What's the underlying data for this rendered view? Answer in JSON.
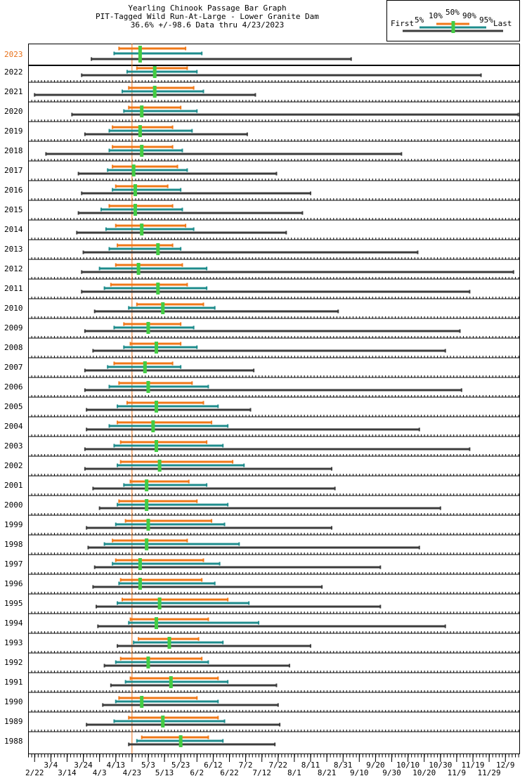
{
  "chart_data": {
    "type": "rangebar",
    "title": [
      "Yearling Chinook Passage Bar Graph",
      "PIT-Tagged Wild Run-At-Large - Lower Granite Dam",
      "36.6% +/-98.6 Data thru 4/23/2023"
    ],
    "categories": [
      "2023",
      "2022",
      "2021",
      "2020",
      "2019",
      "2018",
      "2017",
      "2016",
      "2015",
      "2014",
      "2013",
      "2012",
      "2011",
      "2010",
      "2009",
      "2008",
      "2007",
      "2006",
      "2005",
      "2004",
      "2003",
      "2002",
      "2001",
      "2000",
      "1999",
      "1998",
      "1997",
      "1996",
      "1995",
      "1994",
      "1993",
      "1992",
      "1991",
      "1990",
      "1989",
      "1988"
    ],
    "series": [
      {
        "name": "First",
        "color": "#3c3c3c",
        "values": [
          88,
          82,
          53,
          76,
          84,
          60,
          80,
          82,
          80,
          79,
          83,
          82,
          82,
          90,
          84,
          89,
          84,
          84,
          85,
          85,
          84,
          84,
          89,
          93,
          85,
          86,
          90,
          89,
          91,
          92,
          104,
          96,
          100,
          95,
          85,
          111
        ]
      },
      {
        "name": "5%",
        "color": "#1e8c8c",
        "values": [
          102,
          110,
          107,
          108,
          99,
          99,
          98,
          101,
          94,
          97,
          99,
          93,
          96,
          111,
          102,
          108,
          98,
          99,
          104,
          99,
          102,
          104,
          108,
          104,
          103,
          96,
          101,
          105,
          104,
          111,
          114,
          103,
          109,
          103,
          102,
          116
        ]
      },
      {
        "name": "10%",
        "color": "#f07818",
        "values": [
          105,
          116,
          111,
          111,
          101,
          101,
          101,
          103,
          99,
          103,
          104,
          103,
          100,
          116,
          108,
          112,
          102,
          105,
          110,
          104,
          106,
          106,
          112,
          105,
          109,
          101,
          103,
          106,
          107,
          112,
          117,
          106,
          112,
          105,
          111,
          119
        ]
      },
      {
        "name": "50%",
        "color": "#44cc44",
        "values": [
          118,
          127,
          127,
          119,
          118,
          119,
          114,
          115,
          115,
          119,
          129,
          117,
          129,
          132,
          123,
          128,
          121,
          123,
          128,
          126,
          128,
          130,
          122,
          122,
          123,
          122,
          118,
          118,
          130,
          128,
          136,
          123,
          137,
          119,
          132,
          143
        ]
      },
      {
        "name": "90%",
        "color": "#f07818",
        "values": [
          146,
          147,
          151,
          143,
          138,
          138,
          141,
          135,
          138,
          146,
          138,
          144,
          147,
          157,
          143,
          143,
          138,
          150,
          157,
          162,
          159,
          175,
          148,
          153,
          162,
          147,
          157,
          156,
          172,
          160,
          154,
          156,
          166,
          153,
          166,
          160
        ]
      },
      {
        "name": "95%",
        "color": "#1e8c8c",
        "values": [
          156,
          153,
          157,
          153,
          150,
          144,
          147,
          143,
          144,
          151,
          143,
          159,
          159,
          164,
          151,
          153,
          143,
          160,
          166,
          172,
          169,
          182,
          159,
          172,
          170,
          179,
          167,
          164,
          185,
          191,
          169,
          160,
          172,
          166,
          170,
          169
        ]
      },
      {
        "name": "Last",
        "color": "#3c3c3c",
        "values": [
          248,
          328,
          189,
          351,
          184,
          279,
          202,
          223,
          218,
          208,
          289,
          348,
          321,
          240,
          315,
          306,
          188,
          316,
          186,
          290,
          321,
          236,
          238,
          303,
          236,
          290,
          266,
          230,
          266,
          306,
          223,
          210,
          202,
          203,
          204,
          201
        ]
      }
    ],
    "current_day": 113,
    "highlight_color": "#e87018",
    "xlim": [
      49,
      352
    ],
    "xticks": [
      {
        "value": 53,
        "label": "2/22"
      },
      {
        "value": 63,
        "label": "3/4"
      },
      {
        "value": 73,
        "label": "3/14"
      },
      {
        "value": 83,
        "label": "3/24"
      },
      {
        "value": 93,
        "label": "4/3"
      },
      {
        "value": 103,
        "label": "4/13"
      },
      {
        "value": 113,
        "label": "4/23"
      },
      {
        "value": 123,
        "label": "5/3"
      },
      {
        "value": 133,
        "label": "5/13"
      },
      {
        "value": 143,
        "label": "5/23"
      },
      {
        "value": 153,
        "label": "6/2"
      },
      {
        "value": 163,
        "label": "6/12"
      },
      {
        "value": 173,
        "label": "6/22"
      },
      {
        "value": 183,
        "label": "7/2"
      },
      {
        "value": 193,
        "label": "7/12"
      },
      {
        "value": 203,
        "label": "7/22"
      },
      {
        "value": 213,
        "label": "8/1"
      },
      {
        "value": 223,
        "label": "8/11"
      },
      {
        "value": 233,
        "label": "8/21"
      },
      {
        "value": 243,
        "label": "8/31"
      },
      {
        "value": 253,
        "label": "9/10"
      },
      {
        "value": 263,
        "label": "9/20"
      },
      {
        "value": 273,
        "label": "9/30"
      },
      {
        "value": 283,
        "label": "10/10"
      },
      {
        "value": 293,
        "label": "10/20"
      },
      {
        "value": 303,
        "label": "10/30"
      },
      {
        "value": 313,
        "label": "11/9"
      },
      {
        "value": 323,
        "label": "11/19"
      },
      {
        "value": 333,
        "label": "11/29"
      },
      {
        "value": 343,
        "label": "12/9"
      }
    ]
  }
}
